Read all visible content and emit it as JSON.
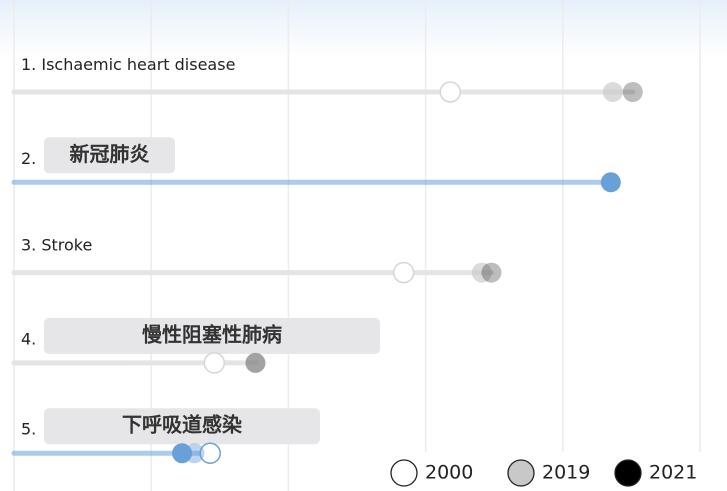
{
  "chart_data": {
    "type": "dotplot",
    "ranks": [
      "1.",
      "2.",
      "3.",
      "4.",
      "5."
    ],
    "categories": [
      "Ischaemic heart disease",
      "新冠肺炎",
      "Stroke",
      "慢性阻塞性肺病",
      "下呼吸道感染"
    ],
    "highlight": [
      false,
      true,
      false,
      false,
      true
    ],
    "highlight_color": "#6aa0d8",
    "series": [
      {
        "name": "2000",
        "color": "#ffffff",
        "values": [
          6.36,
          null,
          5.68,
          2.92,
          2.86
        ]
      },
      {
        "name": "2019",
        "color": "#c8c8c8",
        "values": [
          8.73,
          null,
          6.82,
          3.52,
          2.63
        ]
      },
      {
        "name": "2021",
        "color": "#000000",
        "values": [
          9.02,
          8.7,
          6.96,
          3.52,
          2.45
        ]
      }
    ],
    "xlim": [
      0,
      10
    ],
    "xticks": [
      0,
      2,
      4,
      6,
      8,
      10
    ],
    "grid": true
  }
}
